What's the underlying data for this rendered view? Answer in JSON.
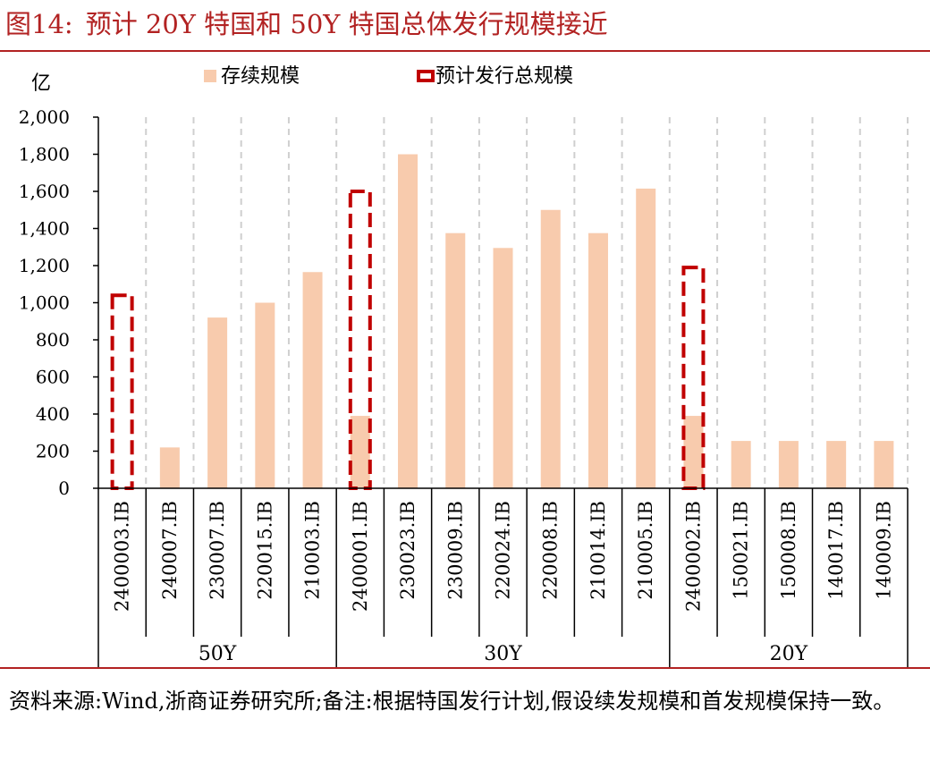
{
  "figure": {
    "label": "图14:",
    "title": "预计 20Y 特国和 50Y 特国总体发行规模接近"
  },
  "chart_data": {
    "type": "bar",
    "y_unit": "亿",
    "ylim": [
      0,
      2000
    ],
    "yticks": [
      "0",
      "200",
      "400",
      "600",
      "800",
      "1,000",
      "1,200",
      "1,400",
      "1,600",
      "1,800",
      "2,000"
    ],
    "ytick_values": [
      0,
      200,
      400,
      600,
      800,
      1000,
      1200,
      1400,
      1600,
      1800,
      2000
    ],
    "categories": [
      "2400003.IB",
      "240007.IB",
      "230007.IB",
      "220015.IB",
      "210003.IB",
      "2400001.IB",
      "230023.IB",
      "230009.IB",
      "220024.IB",
      "220008.IB",
      "210014.IB",
      "210005.IB",
      "2400002.IB",
      "150021.IB",
      "150008.IB",
      "140017.IB",
      "140009.IB"
    ],
    "groups": [
      {
        "name": "50Y",
        "count": 5
      },
      {
        "name": "30Y",
        "count": 7
      },
      {
        "name": "20Y",
        "count": 5
      }
    ],
    "series": [
      {
        "name": "存续规模",
        "color": "#f8cbad",
        "values": [
          null,
          220,
          920,
          1000,
          1165,
          390,
          1800,
          1375,
          1295,
          1500,
          1375,
          1615,
          390,
          255,
          255,
          255,
          255
        ]
      },
      {
        "name": "预计发行总规模",
        "color": "#c00000",
        "style": "dashed-outline",
        "values": [
          1040,
          null,
          null,
          null,
          null,
          1600,
          null,
          null,
          null,
          null,
          null,
          null,
          1190,
          null,
          null,
          null,
          null
        ]
      }
    ],
    "grid": "vertical-dashed",
    "legend_position": "top"
  },
  "source_note": "资料来源:Wind,浙商证券研究所;备注:根据特国发行计划,假设续发规模和首发规模保持一致。"
}
